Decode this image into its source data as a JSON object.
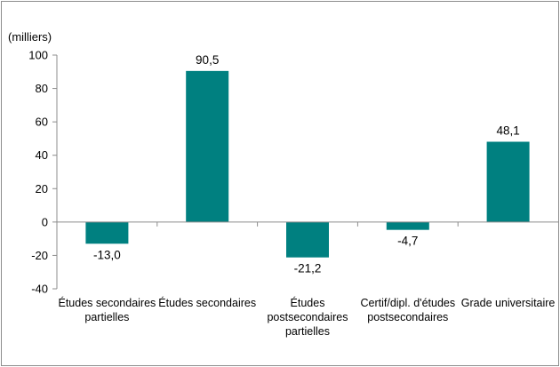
{
  "chart_data": {
    "type": "bar",
    "unit_label": "(milliers)",
    "categories": [
      [
        "Études secondaires",
        "partielles"
      ],
      [
        "Études secondaires"
      ],
      [
        "Études",
        "postsecondaires",
        "partielles"
      ],
      [
        "Certif/dipl. d'études",
        "postsecondaires"
      ],
      [
        "Grade universitaire"
      ]
    ],
    "values": [
      -13.0,
      90.5,
      -21.2,
      -4.7,
      48.1
    ],
    "value_labels": [
      "-13,0",
      "90,5",
      "-21,2",
      "-4,7",
      "48,1"
    ],
    "ylim": [
      -40,
      100
    ],
    "yticks": [
      -40,
      -20,
      0,
      20,
      40,
      60,
      80,
      100
    ],
    "ytick_labels": [
      "-40",
      "-20",
      "0",
      "20",
      "40",
      "60",
      "80",
      "100"
    ],
    "bar_color": "#008080",
    "grid": false,
    "legend": "none"
  }
}
